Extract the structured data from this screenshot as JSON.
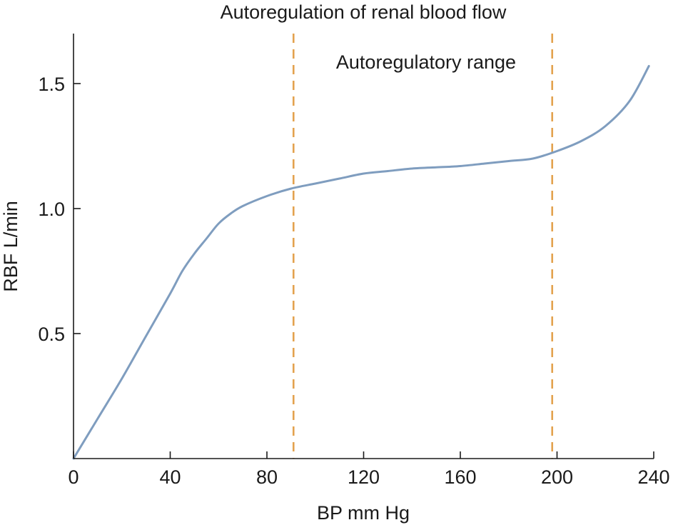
{
  "chart_data": {
    "type": "line",
    "title": "Autoregulation of renal blood flow",
    "xlabel": "BP mm Hg",
    "ylabel": "RBF L/min",
    "xlim": [
      0,
      240
    ],
    "ylim": [
      0,
      1.7
    ],
    "x_ticks": [
      "0",
      "40",
      "80",
      "120",
      "160",
      "200",
      "240"
    ],
    "y_ticks": [
      "0.5",
      "1.0",
      "1.5"
    ],
    "grid": false,
    "legend": "none",
    "annotation": "Autoregulatory range",
    "reference_lines": [
      {
        "x": 91,
        "style": "dashed"
      },
      {
        "x": 198,
        "style": "dashed"
      }
    ],
    "series": [
      {
        "x": [
          0,
          10,
          20,
          30,
          40,
          45,
          50,
          55,
          60,
          65,
          70,
          80,
          90,
          100,
          110,
          120,
          130,
          140,
          150,
          160,
          170,
          180,
          190,
          200,
          210,
          220,
          230,
          238
        ],
        "values": [
          0.0,
          0.16,
          0.32,
          0.49,
          0.66,
          0.75,
          0.82,
          0.88,
          0.94,
          0.98,
          1.01,
          1.05,
          1.08,
          1.1,
          1.12,
          1.14,
          1.15,
          1.16,
          1.165,
          1.17,
          1.18,
          1.19,
          1.2,
          1.23,
          1.27,
          1.33,
          1.43,
          1.57
        ]
      }
    ],
    "colors": {
      "line": "#7f9dbf",
      "reference": "#e3a24e",
      "axis": "#1a1a1a"
    }
  }
}
